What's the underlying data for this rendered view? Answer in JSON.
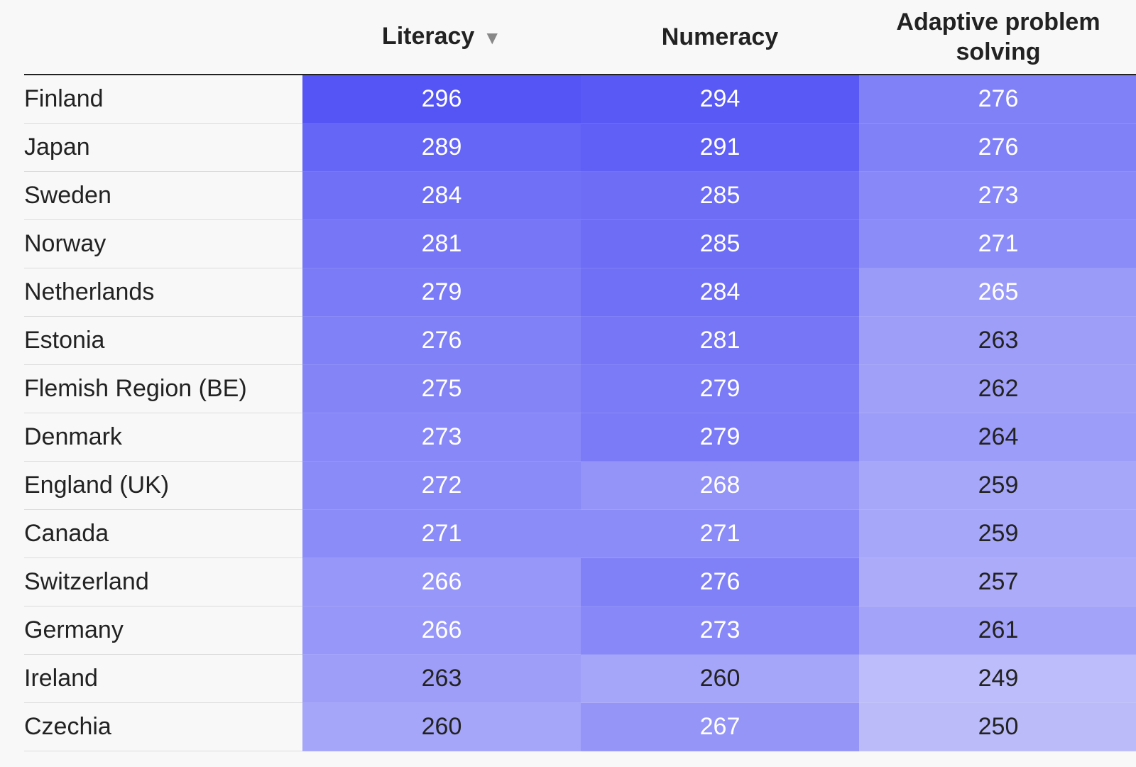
{
  "chart_data": {
    "type": "table",
    "columns": [
      "Literacy",
      "Numeracy",
      "Adaptive problem solving"
    ],
    "sort": {
      "column": "Literacy",
      "direction": "descending",
      "icon": "sort-down-icon"
    },
    "rows": [
      {
        "name": "Finland",
        "values": [
          296,
          294,
          276
        ]
      },
      {
        "name": "Japan",
        "values": [
          289,
          291,
          276
        ]
      },
      {
        "name": "Sweden",
        "values": [
          284,
          285,
          273
        ]
      },
      {
        "name": "Norway",
        "values": [
          281,
          285,
          271
        ]
      },
      {
        "name": "Netherlands",
        "values": [
          279,
          284,
          265
        ]
      },
      {
        "name": "Estonia",
        "values": [
          276,
          281,
          263
        ]
      },
      {
        "name": "Flemish Region (BE)",
        "values": [
          275,
          279,
          262
        ]
      },
      {
        "name": "Denmark",
        "values": [
          273,
          279,
          264
        ]
      },
      {
        "name": "England (UK)",
        "values": [
          272,
          268,
          259
        ]
      },
      {
        "name": "Canada",
        "values": [
          271,
          271,
          259
        ]
      },
      {
        "name": "Switzerland",
        "values": [
          266,
          276,
          257
        ]
      },
      {
        "name": "Germany",
        "values": [
          266,
          273,
          261
        ]
      },
      {
        "name": "Ireland",
        "values": [
          263,
          260,
          249
        ]
      },
      {
        "name": "Czechia",
        "values": [
          260,
          267,
          250
        ]
      }
    ],
    "color_scale": {
      "low_value": 245,
      "high_value": 296,
      "low_color": "#c6c6fb",
      "high_color": "#5555f5"
    },
    "background": "#f8f8f8"
  }
}
